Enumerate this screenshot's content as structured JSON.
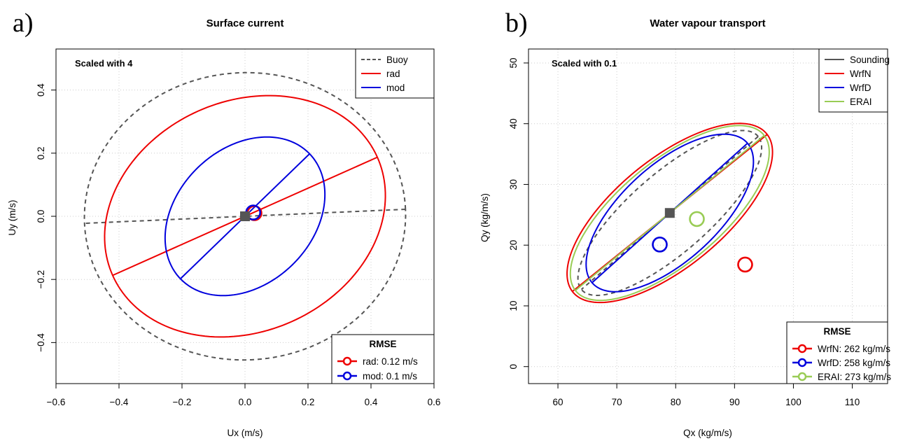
{
  "chart_data": [
    {
      "panel_label": "a)",
      "type": "scatter",
      "title": "Surface current",
      "xlabel": "Ux (m/s)",
      "ylabel": "Uy (m/s)",
      "xlim": [
        -0.6,
        0.6
      ],
      "ylim": [
        -0.53,
        0.53
      ],
      "xticks": [
        -0.6,
        -0.4,
        -0.2,
        0.0,
        0.2,
        0.4,
        0.6
      ],
      "xtick_labels": [
        "−0.6",
        "−0.4",
        "−0.2",
        "0.0",
        "0.2",
        "0.4",
        "0.6"
      ],
      "yticks": [
        -0.4,
        -0.2,
        0.0,
        0.2,
        0.4
      ],
      "ytick_labels": [
        "−0.4",
        "−0.2",
        "0.0",
        "0.2",
        "0.4"
      ],
      "grid": true,
      "annotation": "Scaled with 4",
      "legend": [
        {
          "label": "Buoy",
          "color": "#555555",
          "dash": true
        },
        {
          "label": "rad",
          "color": "#ee0000",
          "dash": false
        },
        {
          "label": "mod",
          "color": "#0000dd",
          "dash": false
        }
      ],
      "legend_position": "top-right",
      "ellipses": [
        {
          "name": "Buoy",
          "color": "#555555",
          "dash": true,
          "cx": 0.0,
          "cy": 0.0,
          "a": 0.51,
          "b": 0.455,
          "angle_deg": 2.5,
          "axis_line": true
        },
        {
          "name": "rad",
          "color": "#ee0000",
          "dash": false,
          "cx": 0.0,
          "cy": 0.0,
          "a": 0.46,
          "b": 0.365,
          "angle_deg": 24,
          "axis_line": true
        },
        {
          "name": "mod",
          "color": "#0000dd",
          "dash": false,
          "cx": 0.0,
          "cy": 0.0,
          "a": 0.285,
          "b": 0.215,
          "angle_deg": 44,
          "axis_line": true
        }
      ],
      "rmse_circles": [
        {
          "name": "rad",
          "color": "#ee0000",
          "x": 0.03,
          "y": 0.01
        },
        {
          "name": "mod",
          "color": "#0000dd",
          "x": 0.026,
          "y": 0.012
        }
      ],
      "center_marker": {
        "x": 0.0,
        "y": 0.0
      },
      "rmse_legend": {
        "title": "RMSE",
        "entries": [
          {
            "label": "rad: 0.12 m/s",
            "color": "#ee0000"
          },
          {
            "label": "mod: 0.1 m/s",
            "color": "#0000dd"
          }
        ],
        "position": "bottom-right"
      }
    },
    {
      "panel_label": "b)",
      "type": "scatter",
      "title": "Water vapour transport",
      "xlabel": "Qx (kg/m/s)",
      "ylabel": "Qy (kg/m/s)",
      "xlim": [
        55,
        116
      ],
      "ylim": [
        -2.8,
        52.3
      ],
      "xticks": [
        60,
        70,
        80,
        90,
        100,
        110
      ],
      "xtick_labels": [
        "60",
        "70",
        "80",
        "90",
        "100",
        "110"
      ],
      "yticks": [
        0,
        10,
        20,
        30,
        40,
        50
      ],
      "ytick_labels": [
        "0",
        "10",
        "20",
        "30",
        "40",
        "50"
      ],
      "grid": true,
      "annotation": "Scaled with 0.1",
      "legend": [
        {
          "label": "Sounding",
          "color": "#555555",
          "dash": false
        },
        {
          "label": "WrfN",
          "color": "#ee0000",
          "dash": false
        },
        {
          "label": "WrfD",
          "color": "#0000dd",
          "dash": false
        },
        {
          "label": "ERAI",
          "color": "#99cc55",
          "dash": false
        }
      ],
      "legend_position": "top-right",
      "ellipses": [
        {
          "name": "Sounding",
          "color": "#555555",
          "dash": true,
          "cx": 79,
          "cy": 25.3,
          "a": 19.6,
          "b": 6.6,
          "angle_deg": 40,
          "axis_line": true
        },
        {
          "name": "WrfN",
          "color": "#ee0000",
          "dash": false,
          "cx": 79,
          "cy": 25.3,
          "a": 21.0,
          "b": 9.0,
          "angle_deg": 38,
          "axis_line": true
        },
        {
          "name": "WrfD",
          "color": "#0000dd",
          "dash": false,
          "cx": 79,
          "cy": 25.3,
          "a": 17.5,
          "b": 8.0,
          "angle_deg": 41,
          "axis_line": true
        },
        {
          "name": "ERAI",
          "color": "#99cc55",
          "dash": false,
          "cx": 79,
          "cy": 25.3,
          "a": 20.5,
          "b": 8.5,
          "angle_deg": 38.5,
          "axis_line": true
        }
      ],
      "rmse_circles": [
        {
          "name": "WrfN",
          "color": "#ee0000",
          "x": 91.8,
          "y": 16.8
        },
        {
          "name": "WrfD",
          "color": "#0000dd",
          "x": 77.3,
          "y": 20.1
        },
        {
          "name": "ERAI",
          "color": "#99cc55",
          "x": 83.6,
          "y": 24.3
        }
      ],
      "center_marker": {
        "x": 79,
        "y": 25.3
      },
      "rmse_legend": {
        "title": "RMSE",
        "entries": [
          {
            "label": "WrfN: 262 kg/m/s",
            "color": "#ee0000"
          },
          {
            "label": "WrfD: 258 kg/m/s",
            "color": "#0000dd"
          },
          {
            "label": "ERAI: 273 kg/m/s",
            "color": "#99cc55"
          }
        ],
        "position": "bottom-right"
      }
    }
  ]
}
